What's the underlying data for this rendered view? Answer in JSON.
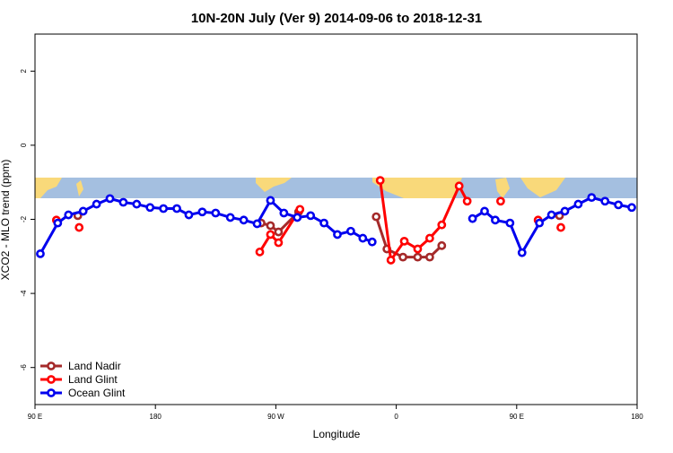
{
  "chart_data": {
    "type": "line",
    "title": "10N-20N July (Ver 9)   2014-09-06 to 2018-12-31",
    "x_label": "Longitude",
    "y_label": "XCO2 - MLO trend (ppm)",
    "xlim": [
      90,
      540
    ],
    "ylim": [
      -7,
      3
    ],
    "xticks": [
      {
        "value": 90,
        "label": "90 E"
      },
      180,
      {
        "value": 270,
        "label": "90 W"
      },
      {
        "value": 360,
        "label": "0"
      },
      {
        "value": 450,
        "label": "90 E"
      },
      {
        "value": 540,
        "label": "180"
      }
    ],
    "yticks": [
      2,
      0,
      -2,
      -4,
      -6
    ],
    "legend": "bottom-left",
    "series": [
      {
        "name": "Land Nadir",
        "color": "#a52a2a",
        "x": [
          122,
          null,
          259,
          266,
          272,
          287,
          null,
          345,
          353,
          365,
          376,
          385,
          394,
          null,
          482
        ],
        "values": [
          -1.9,
          null,
          -2.1,
          -2.17,
          -2.34,
          -1.8,
          null,
          -1.93,
          -2.8,
          -3.02,
          -3.02,
          -3.02,
          -2.71,
          null,
          -1.9
        ]
      },
      {
        "name": "Land Glint",
        "color": "#ff0000",
        "x": [
          106,
          null,
          123,
          null,
          258,
          266,
          272,
          288,
          null,
          348,
          356,
          366,
          376,
          385,
          394,
          407,
          413,
          null,
          438,
          null,
          466,
          null,
          483
        ],
        "values": [
          -2.02,
          null,
          -2.22,
          null,
          -2.88,
          -2.41,
          -2.63,
          -1.73,
          null,
          -0.95,
          -3.1,
          -2.59,
          -2.8,
          -2.51,
          -2.15,
          -1.1,
          -1.51,
          null,
          -1.51,
          null,
          -2.02,
          null,
          -2.22
        ]
      },
      {
        "name": "Ocean Glint",
        "color": "#0000ee",
        "x": [
          94,
          107,
          115,
          126,
          136,
          146,
          156,
          166,
          176,
          186,
          196,
          205,
          215,
          225,
          236,
          246,
          256,
          266,
          276,
          286,
          296,
          306,
          316,
          326,
          335,
          342,
          null,
          417,
          426,
          434,
          445,
          454,
          467,
          476,
          486,
          496,
          506,
          516,
          526,
          536
        ],
        "values": [
          -2.93,
          -2.1,
          -1.88,
          -1.78,
          -1.59,
          -1.44,
          -1.54,
          -1.59,
          -1.68,
          -1.71,
          -1.71,
          -1.88,
          -1.8,
          -1.83,
          -1.95,
          -2.02,
          -2.12,
          -1.49,
          -1.83,
          -1.95,
          -1.9,
          -2.1,
          -2.41,
          -2.32,
          -2.51,
          -2.61,
          null,
          -1.98,
          -1.78,
          -2.02,
          -2.1,
          -2.9,
          -2.1,
          -1.88,
          -1.78,
          -1.59,
          -1.41,
          -1.51,
          -1.61,
          -1.68
        ]
      }
    ]
  }
}
